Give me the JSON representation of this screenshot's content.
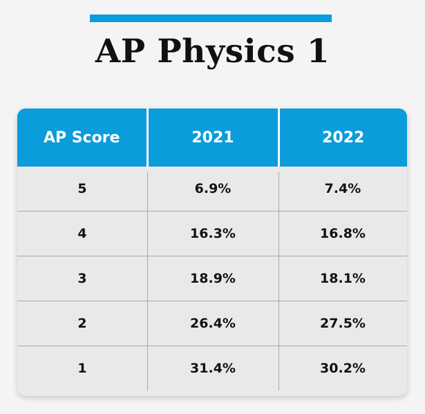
{
  "colors": {
    "accent": "#0b9cdc",
    "header_text": "#ffffff",
    "table_bg": "#e9e9e9",
    "page_bg": "#f4f4f4"
  },
  "title": "AP Physics 1",
  "chart_data": {
    "type": "table",
    "title": "AP Physics 1",
    "columns": [
      "AP Score",
      "2021",
      "2022"
    ],
    "rows": [
      [
        "5",
        "6.9%",
        "7.4%"
      ],
      [
        "4",
        "16.3%",
        "16.8%"
      ],
      [
        "3",
        "18.9%",
        "18.1%"
      ],
      [
        "2",
        "26.4%",
        "27.5%"
      ],
      [
        "1",
        "31.4%",
        "30.2%"
      ]
    ]
  }
}
